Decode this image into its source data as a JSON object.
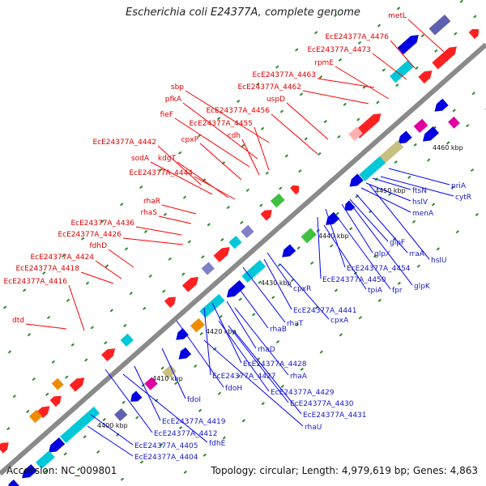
{
  "title": "Escherichia coli E24377A, complete genome",
  "footer": {
    "accession": "Accession: NC_009801",
    "summary": "Topology: circular; Length: 4,979,619 bp; Genes: 4,863"
  },
  "colors": {
    "forward_label": "#e00000",
    "reverse_label": "#1818c8",
    "backbone": "#8a8a8a",
    "tick": "#2d8a2d"
  },
  "scale_labels": [
    "4400 kbp",
    "4410 kbp",
    "4420 kbp",
    "4430 kbp",
    "4440 kbp",
    "4450 kbp",
    "4460 kbp"
  ],
  "forward_genes": [
    "metL",
    "EcE24377A_4476",
    "EcE24377A_4473",
    "rpmE",
    "EcE24377A_4463",
    "EcE24377A_4462",
    "uspD",
    "sbp",
    "pfkA",
    "EcE24377A_4456",
    "fieF",
    "EcE24377A_4455",
    "cdh",
    "cpxP",
    "EcE24377A_4442",
    "sodA",
    "kdgT",
    "EcE24377A_4444",
    "rhaR",
    "rhaS",
    "EcE24377A_4436",
    "EcE24377A_4426",
    "fdhD",
    "EcE24377A_4424",
    "EcE24377A_4418",
    "EcE24377A_4416",
    "dtd"
  ],
  "reverse_genes": [
    "priA",
    "cytR",
    "ftsN",
    "hslV",
    "menA",
    "glpF",
    "rraA",
    "hslU",
    "glpX",
    "EcE24377A_4454",
    "glpK",
    "EcE24377A_4450",
    "fpr",
    "tpiA",
    "cpxR",
    "EcE24377A_4441",
    "cpxA",
    "rhaT",
    "rhaB",
    "rhaD",
    "EcE24377A_4428",
    "EcE24377A_4427",
    "rhaA",
    "EcE24377A_4429",
    "fdoH",
    "EcE24377A_4430",
    "fdoI",
    "EcE24377A_4431",
    "rhaU",
    "EcE24377A_4419",
    "EcE24377A_4412",
    "fdhE",
    "EcE24377A_4405",
    "EcE24377A_4404"
  ]
}
